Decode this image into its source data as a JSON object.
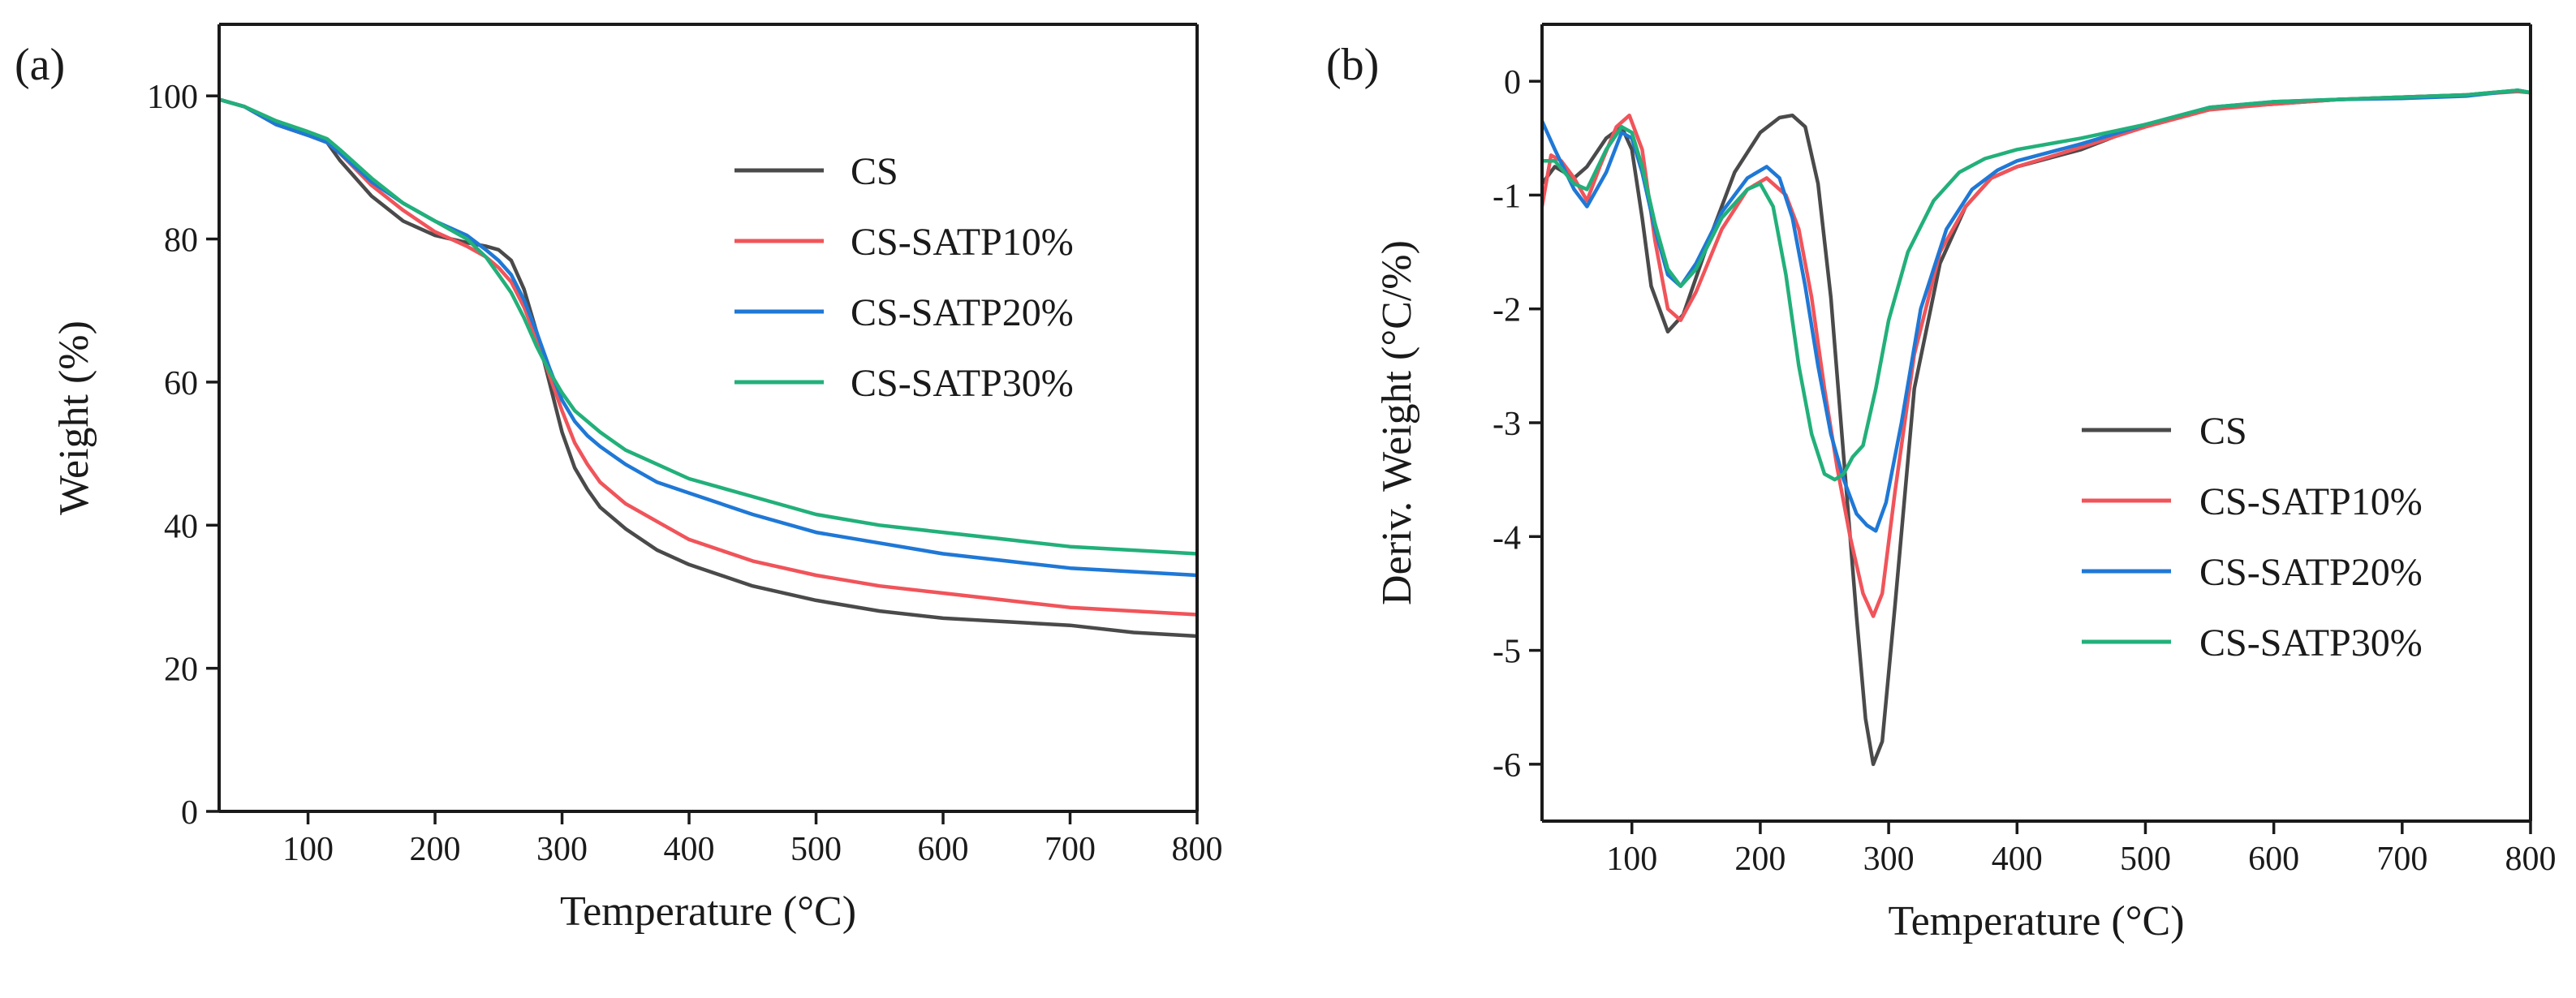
{
  "chart_data": [
    {
      "type": "line",
      "panel_label": "(a)",
      "xlabel": "Temperature (°C)",
      "ylabel": "Weight (%)",
      "xlim": [
        30,
        800
      ],
      "ylim": [
        0,
        110
      ],
      "xticks": [
        100,
        200,
        300,
        400,
        500,
        600,
        700,
        800
      ],
      "xtick_labels": [
        "100",
        "200",
        "300",
        "400",
        "500",
        "600",
        "700",
        "800"
      ],
      "yticks": [
        0,
        20,
        40,
        60,
        80,
        100
      ],
      "ytick_labels": [
        "0",
        "20",
        "40",
        "60",
        "80",
        "100"
      ],
      "legend_position": "upper-right",
      "series": [
        {
          "name": "CS",
          "color": "#4a4a4a",
          "x": [
            30,
            50,
            75,
            100,
            115,
            125,
            150,
            175,
            200,
            225,
            240,
            250,
            260,
            270,
            280,
            290,
            300,
            310,
            320,
            330,
            350,
            375,
            400,
            450,
            500,
            550,
            600,
            650,
            700,
            750,
            800
          ],
          "y": [
            99.5,
            98.5,
            96,
            94.5,
            93.5,
            91,
            86,
            82.5,
            80.5,
            79.5,
            79,
            78.5,
            77,
            73,
            67,
            60,
            53,
            48,
            45,
            42.5,
            39.5,
            36.5,
            34.5,
            31.5,
            29.5,
            28,
            27,
            26.5,
            26,
            25,
            24.5
          ]
        },
        {
          "name": "CS-SATP10%",
          "color": "#f0545a",
          "x": [
            30,
            50,
            75,
            100,
            115,
            125,
            150,
            175,
            200,
            225,
            240,
            250,
            260,
            270,
            280,
            290,
            300,
            310,
            320,
            330,
            350,
            375,
            400,
            450,
            500,
            550,
            600,
            650,
            700,
            750,
            800
          ],
          "y": [
            99.5,
            98.5,
            96,
            94.5,
            93.5,
            92,
            87.5,
            84,
            81,
            79,
            77.5,
            76,
            74,
            70.5,
            66,
            61,
            56,
            51.5,
            48.5,
            46,
            43,
            40.5,
            38,
            35,
            33,
            31.5,
            30.5,
            29.5,
            28.5,
            28,
            27.5
          ]
        },
        {
          "name": "CS-SATP20%",
          "color": "#1f78d6",
          "x": [
            30,
            50,
            75,
            100,
            115,
            125,
            150,
            175,
            200,
            225,
            240,
            250,
            260,
            270,
            280,
            290,
            300,
            310,
            320,
            330,
            350,
            375,
            400,
            450,
            500,
            550,
            600,
            650,
            700,
            750,
            800
          ],
          "y": [
            99.5,
            98.5,
            96,
            94.5,
            93.5,
            92,
            88,
            85,
            82.5,
            80.5,
            78.5,
            77,
            75,
            71.5,
            67,
            62,
            57.5,
            54.5,
            52.5,
            51,
            48.5,
            46,
            44.5,
            41.5,
            39,
            37.5,
            36,
            35,
            34,
            33.5,
            33
          ]
        },
        {
          "name": "CS-SATP30%",
          "color": "#22b07a",
          "x": [
            30,
            50,
            75,
            100,
            115,
            125,
            150,
            175,
            200,
            225,
            240,
            250,
            260,
            270,
            280,
            290,
            300,
            310,
            320,
            330,
            350,
            375,
            400,
            450,
            500,
            550,
            600,
            650,
            700,
            750,
            800
          ],
          "y": [
            99.5,
            98.5,
            96.5,
            95,
            94,
            92.5,
            88.5,
            85,
            82.5,
            80,
            77.5,
            75,
            72.5,
            69,
            65,
            61.5,
            58.5,
            56,
            54.5,
            53,
            50.5,
            48.5,
            46.5,
            44,
            41.5,
            40,
            39,
            38,
            37,
            36.5,
            36
          ]
        }
      ]
    },
    {
      "type": "line",
      "panel_label": "(b)",
      "xlabel": "Temperature (°C)",
      "ylabel": "Deriv. Weight (°C/%)",
      "xlim": [
        30,
        800
      ],
      "ylim": [
        -6.5,
        0.5
      ],
      "xticks": [
        100,
        200,
        300,
        400,
        500,
        600,
        700,
        800
      ],
      "xtick_labels": [
        "100",
        "200",
        "300",
        "400",
        "500",
        "600",
        "700",
        "800"
      ],
      "yticks": [
        0,
        -1,
        -2,
        -3,
        -4,
        -5,
        -6
      ],
      "ytick_labels": [
        "0",
        "-1",
        "-2",
        "-3",
        "-4",
        "-5",
        "-6"
      ],
      "legend_position": "lower-right",
      "series": [
        {
          "name": "CS",
          "color": "#4a4a4a",
          "x": [
            30,
            40,
            55,
            65,
            80,
            92,
            100,
            108,
            115,
            128,
            140,
            160,
            180,
            200,
            215,
            225,
            235,
            245,
            255,
            265,
            275,
            282,
            288,
            295,
            305,
            320,
            340,
            360,
            380,
            400,
            450,
            500,
            550,
            600,
            650,
            700,
            750,
            790,
            800
          ],
          "y": [
            -0.9,
            -0.75,
            -0.85,
            -0.75,
            -0.5,
            -0.4,
            -0.6,
            -1.2,
            -1.8,
            -2.2,
            -2.05,
            -1.4,
            -0.8,
            -0.45,
            -0.32,
            -0.3,
            -0.4,
            -0.9,
            -1.9,
            -3.3,
            -4.7,
            -5.6,
            -6.0,
            -5.8,
            -4.6,
            -2.7,
            -1.6,
            -1.1,
            -0.85,
            -0.75,
            -0.6,
            -0.38,
            -0.24,
            -0.2,
            -0.16,
            -0.14,
            -0.12,
            -0.08,
            -0.1
          ]
        },
        {
          "name": "CS-SATP10%",
          "color": "#f0545a",
          "x": [
            30,
            37,
            45,
            55,
            65,
            75,
            88,
            98,
            108,
            118,
            128,
            138,
            150,
            170,
            190,
            205,
            220,
            230,
            240,
            250,
            260,
            270,
            280,
            288,
            295,
            305,
            320,
            340,
            360,
            380,
            400,
            450,
            500,
            550,
            600,
            650,
            700,
            750,
            790,
            800
          ],
          "y": [
            -1.1,
            -0.65,
            -0.7,
            -0.85,
            -1.05,
            -0.75,
            -0.4,
            -0.3,
            -0.6,
            -1.4,
            -2.0,
            -2.1,
            -1.85,
            -1.3,
            -0.95,
            -0.85,
            -1.0,
            -1.3,
            -1.9,
            -2.7,
            -3.4,
            -4.0,
            -4.5,
            -4.7,
            -4.5,
            -3.6,
            -2.4,
            -1.5,
            -1.1,
            -0.85,
            -0.75,
            -0.58,
            -0.4,
            -0.25,
            -0.2,
            -0.16,
            -0.14,
            -0.12,
            -0.09,
            -0.1
          ]
        },
        {
          "name": "CS-SATP20%",
          "color": "#1f78d6",
          "x": [
            30,
            40,
            55,
            65,
            80,
            92,
            100,
            108,
            118,
            128,
            138,
            150,
            170,
            190,
            205,
            215,
            225,
            235,
            245,
            255,
            265,
            275,
            283,
            290,
            298,
            310,
            325,
            345,
            365,
            385,
            400,
            450,
            500,
            550,
            600,
            650,
            700,
            750,
            790,
            800
          ],
          "y": [
            -0.35,
            -0.6,
            -0.95,
            -1.1,
            -0.8,
            -0.45,
            -0.5,
            -0.8,
            -1.3,
            -1.7,
            -1.8,
            -1.6,
            -1.15,
            -0.85,
            -0.75,
            -0.85,
            -1.2,
            -1.8,
            -2.5,
            -3.1,
            -3.5,
            -3.8,
            -3.9,
            -3.95,
            -3.7,
            -3.0,
            -2.0,
            -1.3,
            -0.95,
            -0.78,
            -0.7,
            -0.55,
            -0.38,
            -0.23,
            -0.18,
            -0.16,
            -0.15,
            -0.13,
            -0.08,
            -0.1
          ]
        },
        {
          "name": "CS-SATP30%",
          "color": "#22b07a",
          "x": [
            30,
            40,
            55,
            65,
            80,
            92,
            100,
            108,
            118,
            128,
            138,
            150,
            170,
            190,
            200,
            210,
            220,
            230,
            240,
            250,
            258,
            265,
            272,
            280,
            290,
            300,
            315,
            335,
            355,
            375,
            400,
            450,
            500,
            550,
            600,
            650,
            700,
            750,
            790,
            800
          ],
          "y": [
            -0.7,
            -0.7,
            -0.9,
            -0.95,
            -0.6,
            -0.4,
            -0.45,
            -0.75,
            -1.25,
            -1.65,
            -1.8,
            -1.65,
            -1.2,
            -0.95,
            -0.9,
            -1.1,
            -1.7,
            -2.5,
            -3.1,
            -3.45,
            -3.5,
            -3.45,
            -3.3,
            -3.2,
            -2.7,
            -2.1,
            -1.5,
            -1.05,
            -0.8,
            -0.68,
            -0.6,
            -0.5,
            -0.38,
            -0.23,
            -0.18,
            -0.16,
            -0.14,
            -0.12,
            -0.08,
            -0.1
          ]
        }
      ]
    }
  ]
}
